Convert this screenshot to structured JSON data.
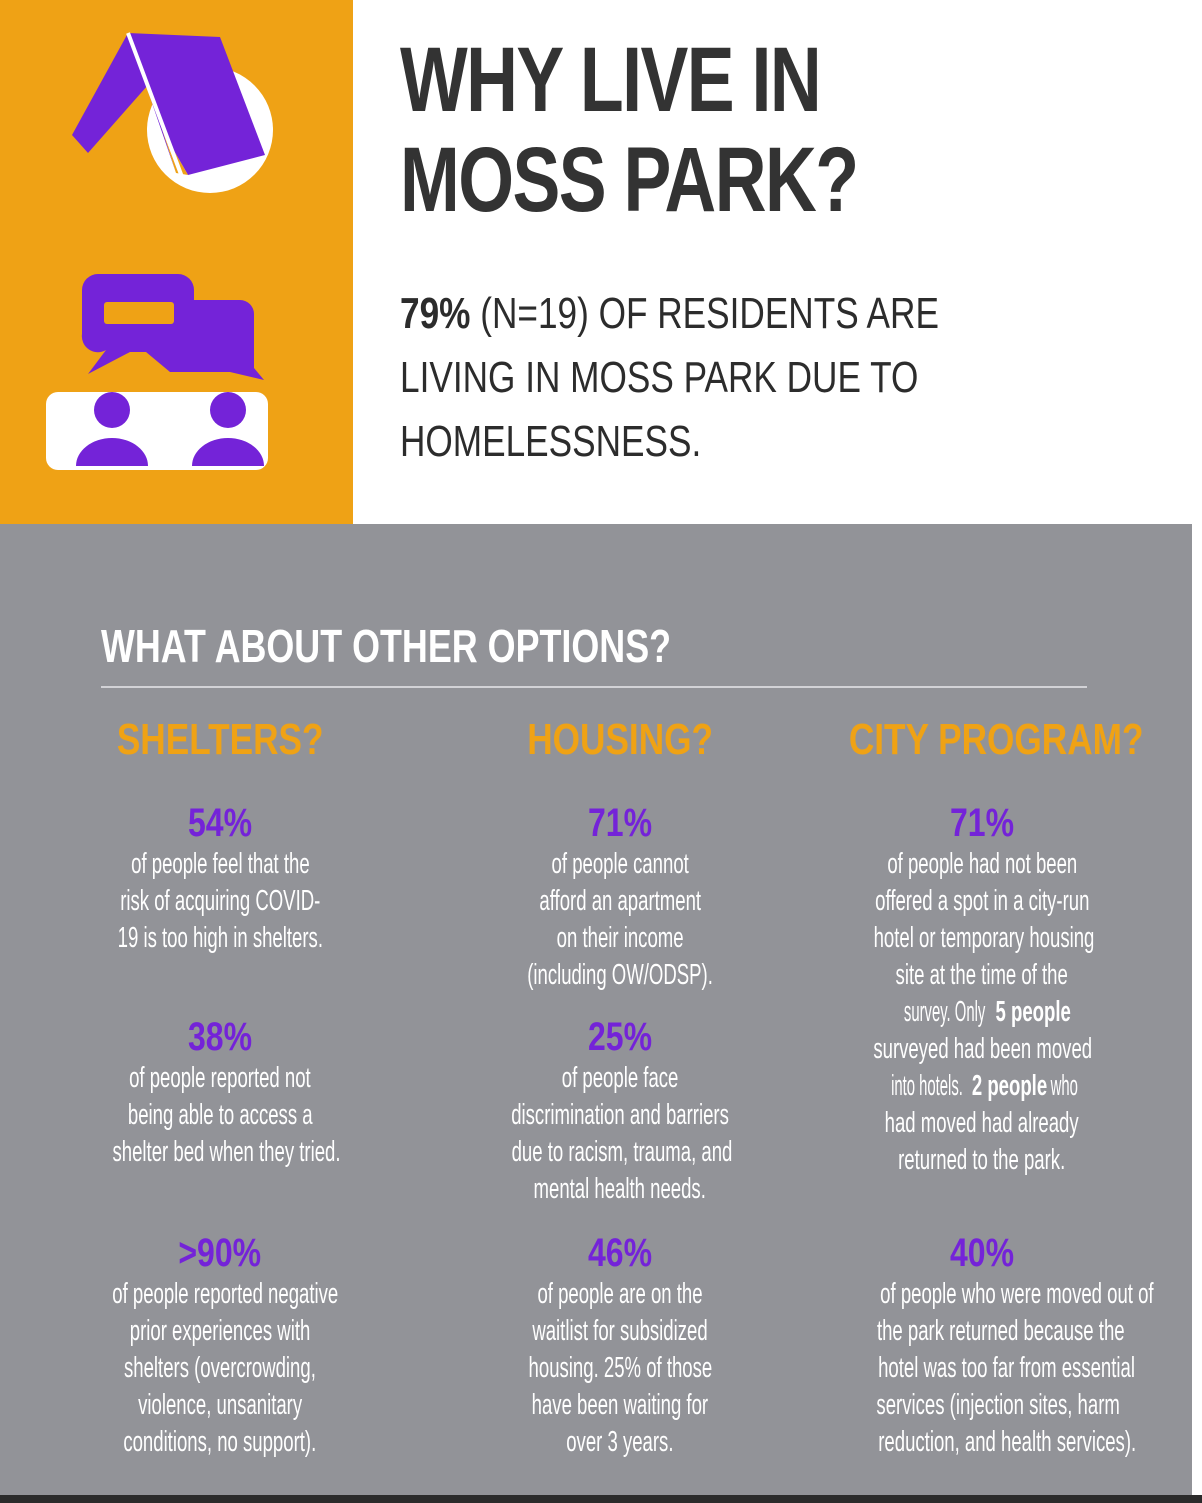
{
  "colors": {
    "accent_orange": "#efa215",
    "accent_purple": "#7423d8",
    "panel_gray": "#929398",
    "title_dark": "#333333"
  },
  "icons": [
    "tent-icon",
    "conversation-icon"
  ],
  "header": {
    "title_line1": "WHY LIVE IN",
    "title_line2": "MOSS PARK?",
    "lead_bold": "79%",
    "lead_line1_rest": " (N=19) OF RESIDENTS ARE",
    "lead_line2": "LIVING IN MOSS PARK DUE TO",
    "lead_line3": "HOMELESSNESS."
  },
  "section": {
    "title": "WHAT ABOUT OTHER OPTIONS?"
  },
  "columns": [
    {
      "heading": "SHELTERS?",
      "stats": [
        {
          "value": "54%",
          "lines": [
            "of people feel that the",
            "risk of acquiring COVID-",
            "19 is too high in shelters."
          ]
        },
        {
          "value": "38%",
          "lines": [
            "of people reported not",
            "being able to access a",
            "shelter bed when they tried."
          ]
        },
        {
          "value": ">90%",
          "lines": [
            "of people reported negative",
            "prior experiences with",
            "shelters (overcrowding,",
            "violence, unsanitary",
            "conditions, no support)."
          ]
        }
      ]
    },
    {
      "heading": "HOUSING?",
      "stats": [
        {
          "value": "71%",
          "lines": [
            "of people cannot",
            "afford an apartment",
            "on their income",
            "(including OW/ODSP)."
          ]
        },
        {
          "value": "25%",
          "lines": [
            "of people face",
            "discrimination and barriers",
            "due to racism, trauma, and",
            "mental health needs."
          ]
        },
        {
          "value": "46%",
          "lines": [
            "of people are on the",
            "waitlist for subsidized",
            "housing. 25% of those",
            "have been waiting for",
            "over 3 years."
          ]
        }
      ]
    },
    {
      "heading": "CITY PROGRAM?",
      "stats": [
        {
          "value": "71%",
          "lines": [
            "of people had not been",
            "offered a spot in a city-run",
            "hotel or temporary housing",
            "site at the time of the"
          ],
          "line5_pre": "survey. Only ",
          "line5_bold": "5 people",
          "line6": "surveyed had been moved",
          "line7_pre": "into hotels. ",
          "line7_bold": "2 people",
          "line7_post": " who",
          "line8": "had moved had already",
          "line9": "returned to the park."
        },
        {
          "value": "40%",
          "lines": [
            "of people who were moved out of",
            "the park returned because the",
            "hotel was too far from essential",
            "services (injection sites, harm",
            "reduction, and health services)."
          ]
        }
      ]
    }
  ]
}
